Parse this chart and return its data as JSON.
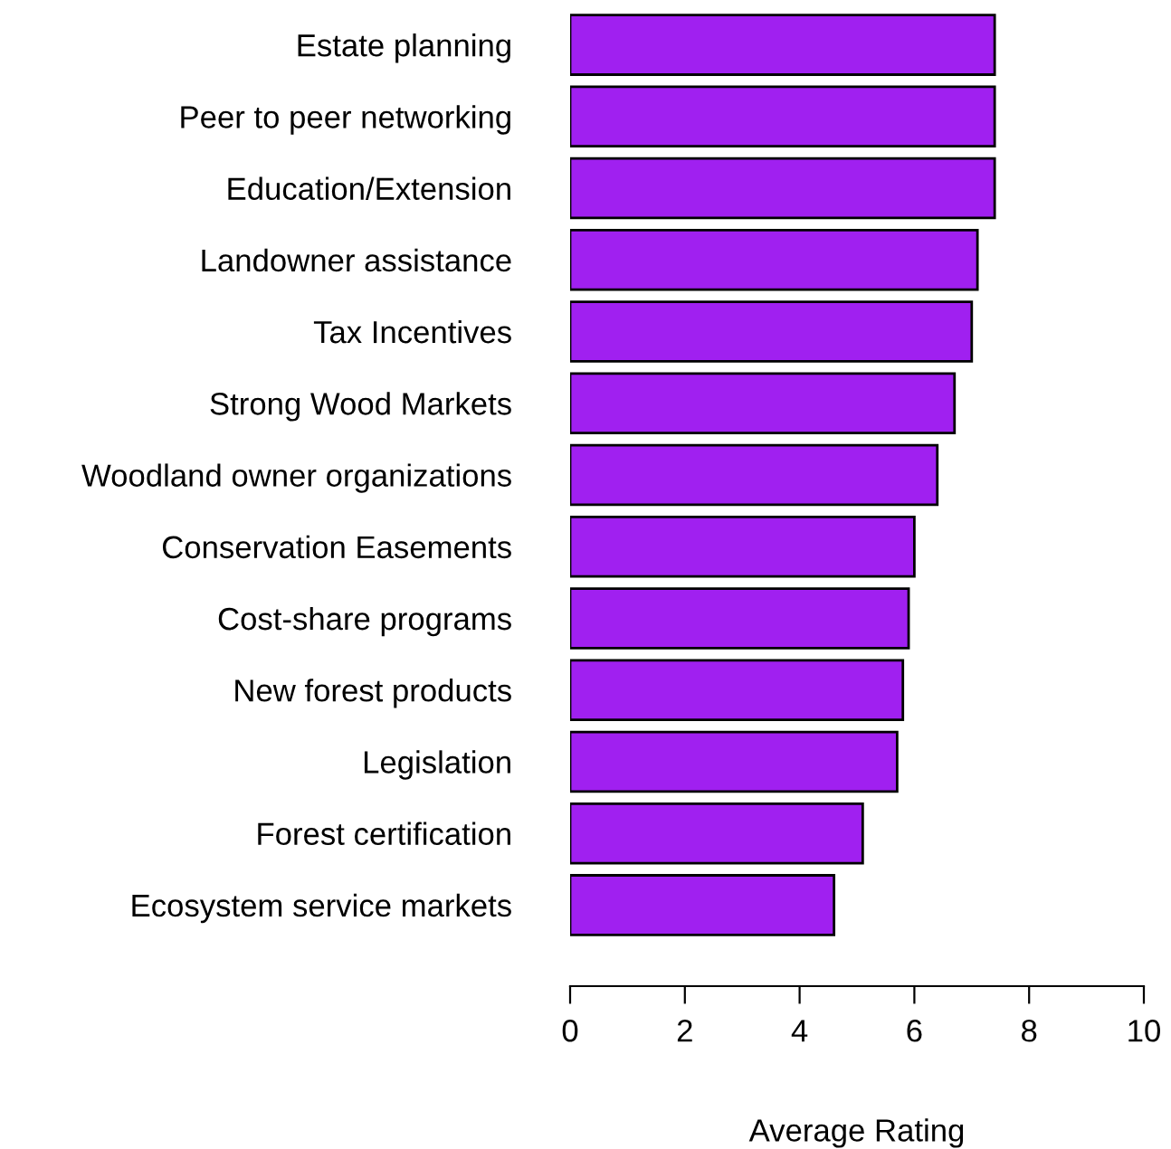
{
  "chart_data": {
    "type": "bar",
    "orientation": "horizontal",
    "xlabel": "Average Rating",
    "categories": [
      "Estate planning",
      "Peer to peer networking",
      "Education/Extension",
      "Landowner assistance",
      "Tax Incentives",
      "Strong Wood Markets",
      "Woodland owner organizations",
      "Conservation Easements",
      "Cost-share programs",
      "New forest products",
      "Legislation",
      "Forest certification",
      "Ecosystem service markets"
    ],
    "values": [
      7.4,
      7.4,
      7.4,
      7.1,
      7.0,
      6.7,
      6.4,
      6.0,
      5.9,
      5.8,
      5.7,
      5.1,
      4.6
    ],
    "color": "#a020f0",
    "xlim": [
      0,
      10
    ],
    "xticks": [
      0,
      2,
      4,
      6,
      8,
      10
    ],
    "grid": false
  }
}
